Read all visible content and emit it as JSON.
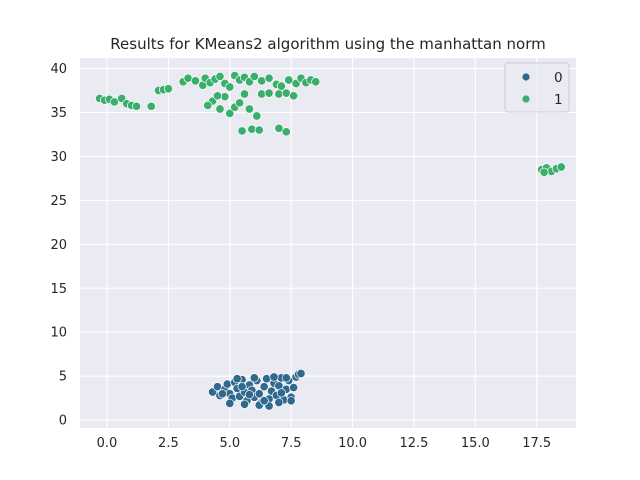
{
  "chart_data": {
    "type": "scatter",
    "title": "Results for KMeans2 algorithm using the manhattan norm",
    "xlabel": "",
    "ylabel": "",
    "xlim": [
      -1.1,
      19.1
    ],
    "ylim": [
      -0.9,
      41.2
    ],
    "grid": true,
    "legend_position": "top-right",
    "x_ticks": [
      "0.0",
      "2.5",
      "5.0",
      "7.5",
      "10.0",
      "12.5",
      "15.0",
      "17.5"
    ],
    "y_ticks": [
      "0",
      "5",
      "10",
      "15",
      "20",
      "25",
      "30",
      "35",
      "40"
    ],
    "series": [
      {
        "name": "0",
        "color": "#30688e",
        "points": [
          [
            4.3,
            3.2
          ],
          [
            4.5,
            3.8
          ],
          [
            4.6,
            2.8
          ],
          [
            4.8,
            3.5
          ],
          [
            4.9,
            4.1
          ],
          [
            5.0,
            3.0
          ],
          [
            5.1,
            2.5
          ],
          [
            5.2,
            4.3
          ],
          [
            5.3,
            3.6
          ],
          [
            5.4,
            2.7
          ],
          [
            5.5,
            4.6
          ],
          [
            5.6,
            3.2
          ],
          [
            5.7,
            2.2
          ],
          [
            5.8,
            4.0
          ],
          [
            5.9,
            3.4
          ],
          [
            6.0,
            2.6
          ],
          [
            6.1,
            4.5
          ],
          [
            6.2,
            3.0
          ],
          [
            6.3,
            2.0
          ],
          [
            6.4,
            3.8
          ],
          [
            6.5,
            4.7
          ],
          [
            6.6,
            2.4
          ],
          [
            6.7,
            3.3
          ],
          [
            6.8,
            4.2
          ],
          [
            6.9,
            2.8
          ],
          [
            7.0,
            3.9
          ],
          [
            7.1,
            4.8
          ],
          [
            7.2,
            2.3
          ],
          [
            7.3,
            3.5
          ],
          [
            7.4,
            4.5
          ],
          [
            7.5,
            2.6
          ],
          [
            7.6,
            3.7
          ],
          [
            7.7,
            4.9
          ],
          [
            7.8,
            5.2
          ],
          [
            7.9,
            5.3
          ],
          [
            5.0,
            1.9
          ],
          [
            5.6,
            1.8
          ],
          [
            6.2,
            1.7
          ],
          [
            6.6,
            1.6
          ],
          [
            7.0,
            2.0
          ],
          [
            7.5,
            2.2
          ],
          [
            4.7,
            3.0
          ],
          [
            5.3,
            4.7
          ],
          [
            6.0,
            4.8
          ],
          [
            6.8,
            4.9
          ],
          [
            7.3,
            4.8
          ],
          [
            5.8,
            2.9
          ],
          [
            6.4,
            2.2
          ],
          [
            7.1,
            3.1
          ],
          [
            5.5,
            3.8
          ]
        ]
      },
      {
        "name": "1",
        "color": "#3aaf6c",
        "points": [
          [
            -0.3,
            36.6
          ],
          [
            -0.1,
            36.4
          ],
          [
            0.1,
            36.5
          ],
          [
            0.3,
            36.2
          ],
          [
            0.6,
            36.6
          ],
          [
            0.8,
            36.0
          ],
          [
            1.0,
            35.8
          ],
          [
            1.2,
            35.7
          ],
          [
            1.8,
            35.7
          ],
          [
            2.1,
            37.5
          ],
          [
            2.3,
            37.6
          ],
          [
            2.5,
            37.7
          ],
          [
            3.1,
            38.5
          ],
          [
            3.3,
            38.9
          ],
          [
            3.6,
            38.6
          ],
          [
            3.9,
            38.1
          ],
          [
            4.0,
            38.9
          ],
          [
            4.2,
            38.4
          ],
          [
            4.4,
            38.8
          ],
          [
            4.6,
            39.1
          ],
          [
            4.8,
            38.3
          ],
          [
            5.0,
            37.9
          ],
          [
            5.2,
            39.2
          ],
          [
            5.4,
            38.7
          ],
          [
            5.6,
            39.0
          ],
          [
            5.8,
            38.5
          ],
          [
            6.0,
            39.1
          ],
          [
            6.3,
            38.6
          ],
          [
            6.6,
            38.9
          ],
          [
            6.9,
            38.2
          ],
          [
            7.1,
            38.0
          ],
          [
            7.4,
            38.7
          ],
          [
            7.7,
            38.3
          ],
          [
            7.9,
            38.9
          ],
          [
            8.1,
            38.4
          ],
          [
            8.3,
            38.7
          ],
          [
            8.5,
            38.5
          ],
          [
            4.3,
            36.3
          ],
          [
            4.6,
            35.4
          ],
          [
            4.8,
            36.8
          ],
          [
            5.0,
            34.9
          ],
          [
            5.2,
            35.6
          ],
          [
            5.4,
            36.1
          ],
          [
            5.6,
            37.1
          ],
          [
            5.8,
            35.4
          ],
          [
            6.1,
            34.6
          ],
          [
            6.3,
            37.1
          ],
          [
            6.6,
            37.2
          ],
          [
            7.0,
            37.1
          ],
          [
            7.3,
            37.2
          ],
          [
            7.6,
            36.9
          ],
          [
            4.1,
            35.8
          ],
          [
            4.5,
            36.9
          ],
          [
            5.5,
            32.9
          ],
          [
            5.9,
            33.1
          ],
          [
            6.2,
            33.0
          ],
          [
            7.0,
            33.2
          ],
          [
            7.3,
            32.8
          ],
          [
            17.7,
            28.5
          ],
          [
            17.9,
            28.7
          ],
          [
            18.1,
            28.3
          ],
          [
            18.3,
            28.6
          ],
          [
            18.5,
            28.8
          ],
          [
            17.8,
            28.2
          ]
        ]
      }
    ]
  }
}
